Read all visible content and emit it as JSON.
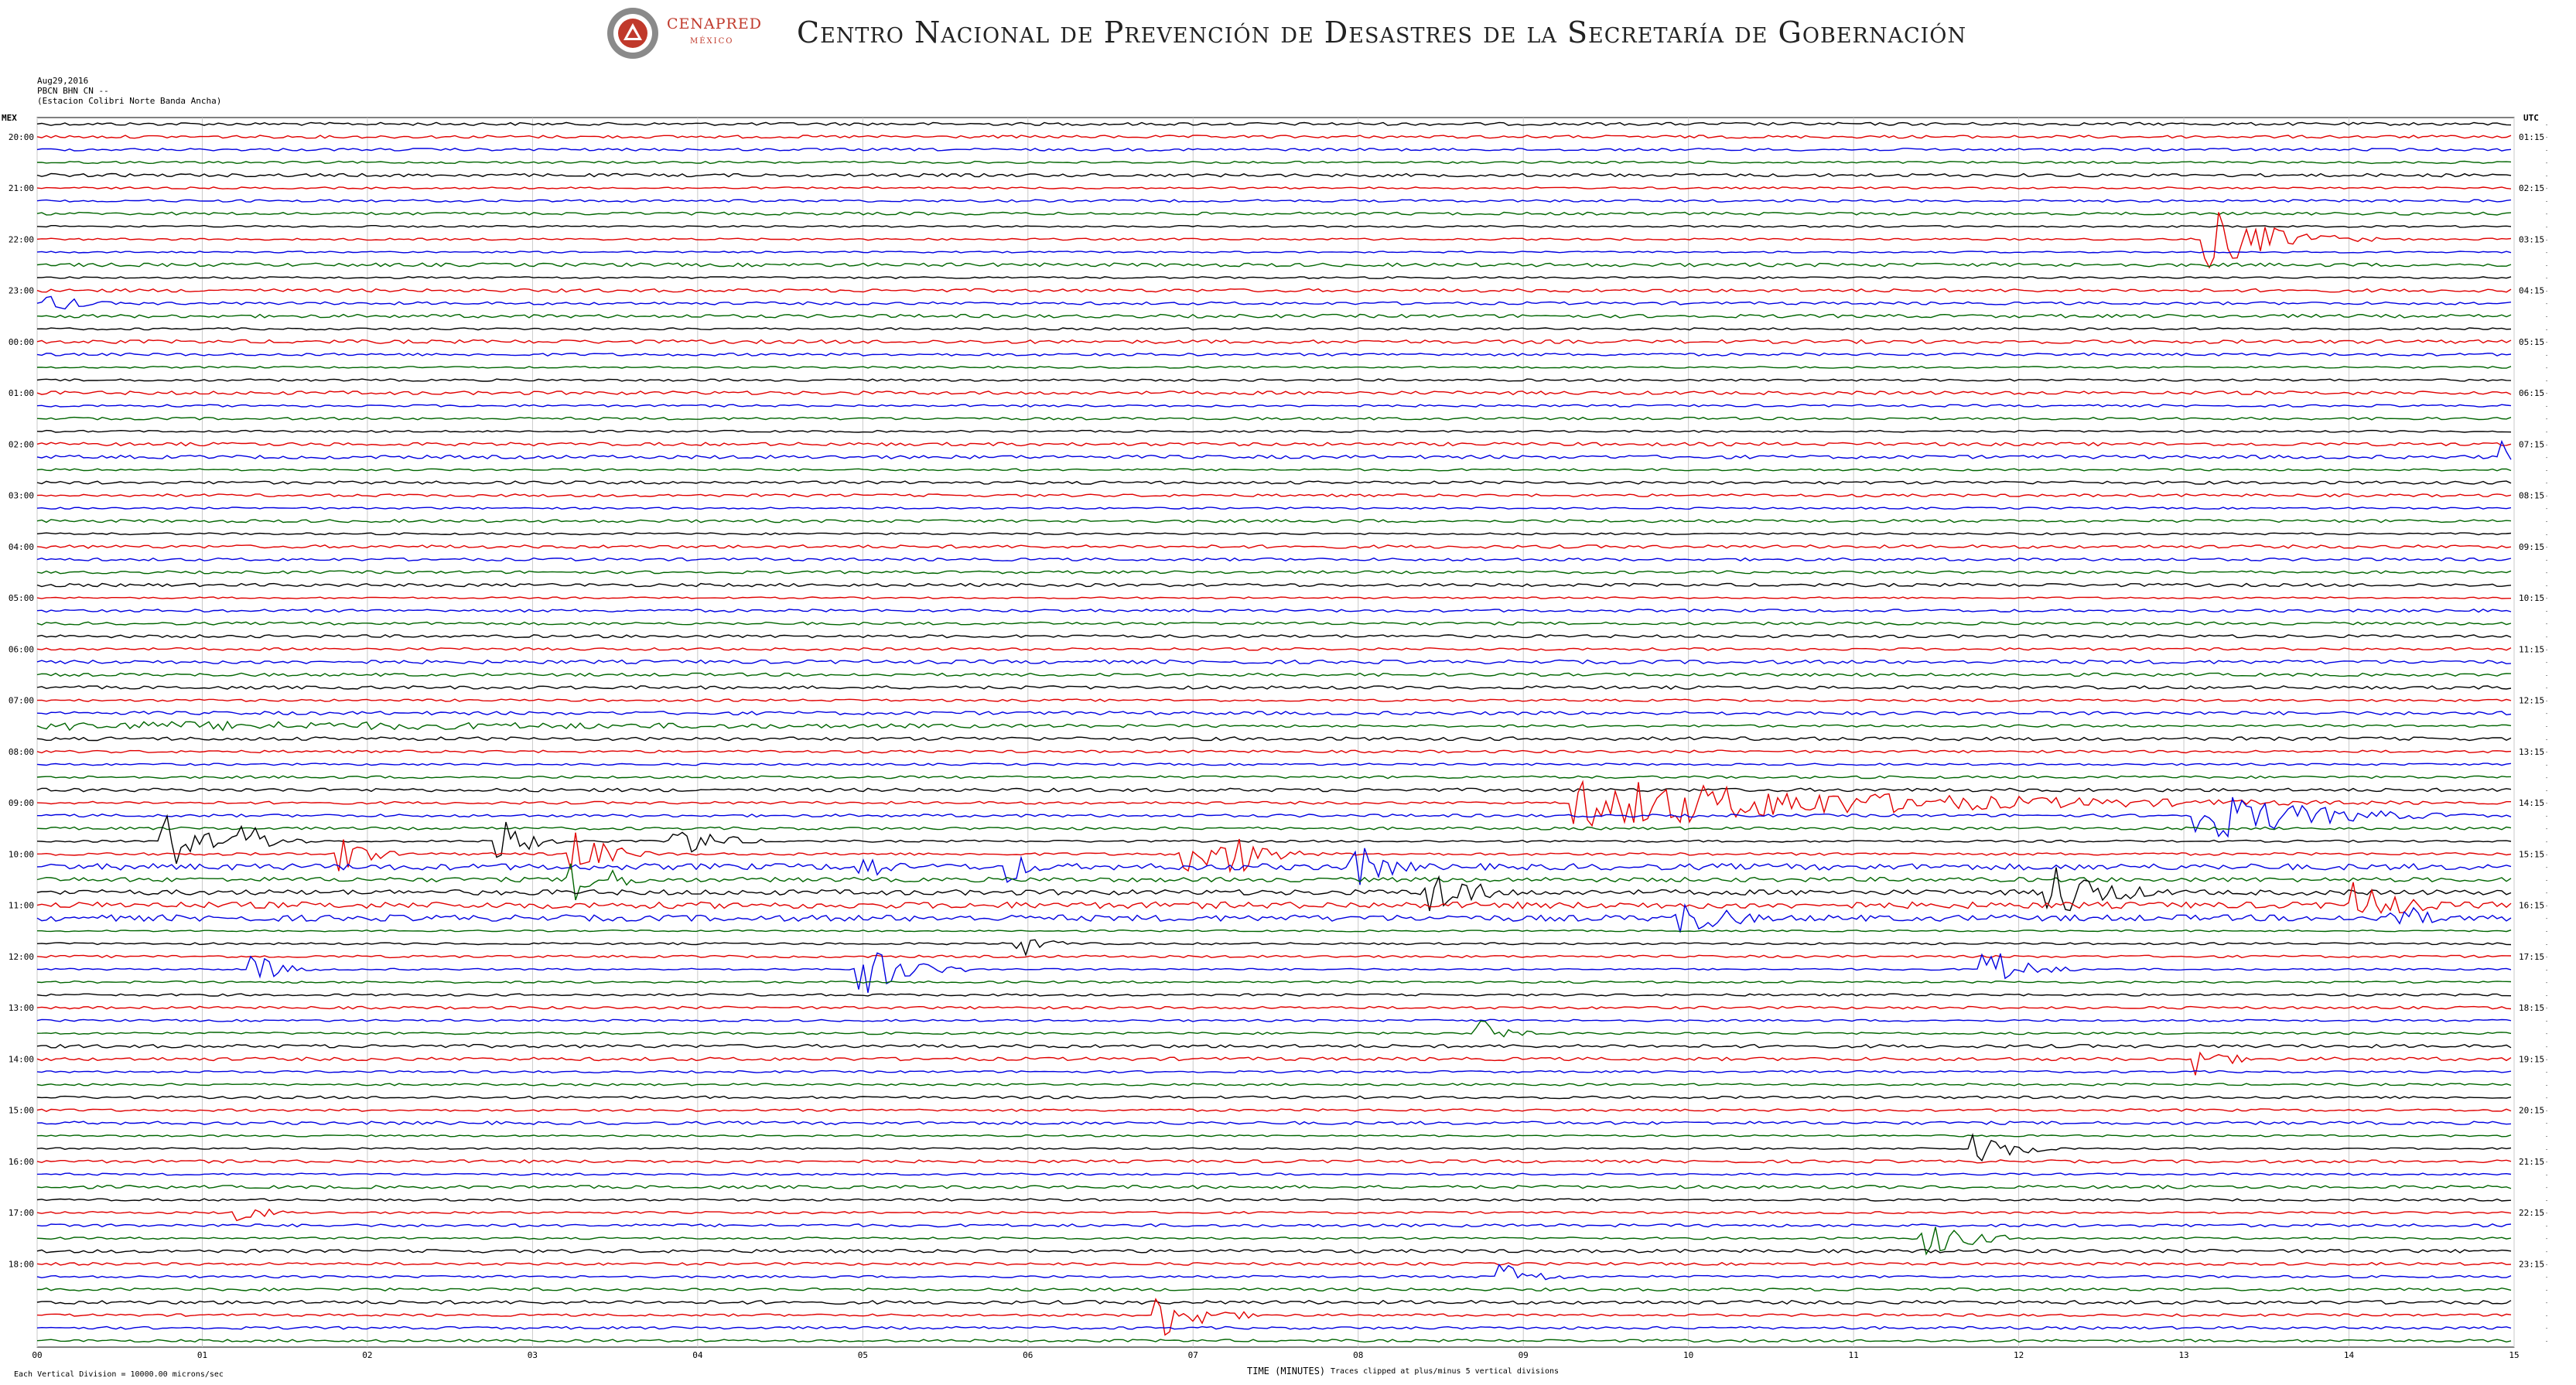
{
  "header": {
    "logo_name": "CENAPRED",
    "logo_sub": "MÉXICO",
    "title": "Centro Nacional de Prevención de Desastres de la Secretaría de Gobernación",
    "logo_icon": "cenapred-seal-icon"
  },
  "meta": {
    "date": "Aug29,2016",
    "channel": "PBCN BHN CN --",
    "station": "(Estacion Colibri Norte Banda Ancha)"
  },
  "axes": {
    "left_zone": "MEX",
    "right_zone": "UTC",
    "left_hours": [
      "20:00",
      "21:00",
      "22:00",
      "23:00",
      "00:00",
      "01:00",
      "02:00",
      "03:00",
      "04:00",
      "05:00",
      "06:00",
      "07:00",
      "08:00",
      "09:00",
      "10:00",
      "11:00",
      "12:00",
      "13:00",
      "14:00",
      "15:00",
      "16:00",
      "17:00",
      "18:00"
    ],
    "right_hours": [
      "01:15",
      "02:15",
      "03:15",
      "04:15",
      "05:15",
      "06:15",
      "07:15",
      "08:15",
      "09:15",
      "10:15",
      "11:15",
      "12:15",
      "13:15",
      "14:15",
      "15:15",
      "16:15",
      "17:15",
      "18:15",
      "19:15",
      "20:15",
      "21:15",
      "22:15",
      "23:15"
    ],
    "minute_ticks": [
      "00",
      "01",
      "02",
      "03",
      "04",
      "05",
      "06",
      "07",
      "08",
      "09",
      "10",
      "11",
      "12",
      "13",
      "14",
      "15"
    ],
    "x_label": "TIME (MINUTES)",
    "note_left": "Each Vertical Division = 10000.00 microns/sec",
    "note_right": "Traces clipped at plus/minus 5 vertical divisions"
  },
  "colors": {
    "trace_cycle": [
      "#000000",
      "#e00000",
      "#0000e0",
      "#006400"
    ],
    "grid": "#c8c8c8"
  },
  "trace_rows": 96
}
